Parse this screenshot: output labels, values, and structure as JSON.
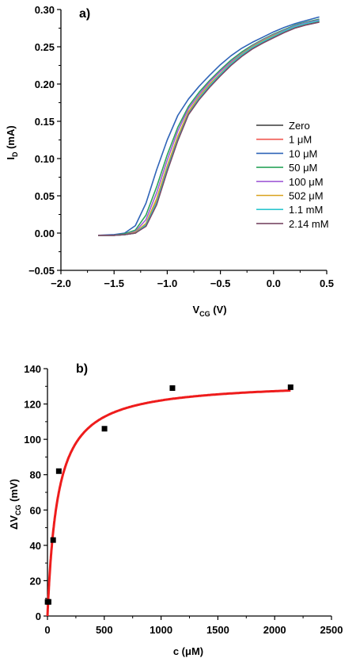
{
  "chart_data": [
    {
      "type": "line",
      "panel_label": "a)",
      "xlabel": "V",
      "xlabel_sub": "CG",
      "xlabel_unit": " (V)",
      "ylabel": "I",
      "ylabel_sub": "D",
      "ylabel_unit": " (mA)",
      "xlim": [
        -2.0,
        0.5
      ],
      "ylim": [
        -0.05,
        0.3
      ],
      "xticks": [
        -2.0,
        -1.5,
        -1.0,
        -0.5,
        0.0,
        0.5
      ],
      "xtick_labels": [
        "−2.0",
        "−1.5",
        "−1.0",
        "−0.5",
        "0.0",
        "0.5"
      ],
      "yticks": [
        -0.05,
        0.0,
        0.05,
        0.1,
        0.15,
        0.2,
        0.25,
        0.3
      ],
      "ytick_labels": [
        "−0.05",
        "0.00",
        "0.05",
        "0.10",
        "0.15",
        "0.20",
        "0.25",
        "0.30"
      ],
      "legend_position": "right",
      "series": [
        {
          "name": "Zero",
          "color": "#3a3a3a",
          "shift": 0.125,
          "x": [
            -1.65,
            -1.5,
            -1.4,
            -1.3,
            -1.2,
            -1.1,
            -1.0,
            -0.9,
            -0.8,
            -0.7,
            -0.6,
            -0.5,
            -0.4,
            -0.3,
            -0.2,
            -0.1,
            0.0,
            0.1,
            0.2,
            0.3,
            0.43
          ],
          "y": [
            -0.003,
            -0.003,
            -0.002,
            0.0,
            0.01,
            0.04,
            0.085,
            0.125,
            0.16,
            0.18,
            0.197,
            0.212,
            0.226,
            0.238,
            0.248,
            0.256,
            0.263,
            0.27,
            0.276,
            0.28,
            0.284
          ]
        },
        {
          "name": "1 μM",
          "color": "#f0564f",
          "shift": 0.118,
          "x": [
            -1.65,
            -1.5,
            -1.4,
            -1.3,
            -1.2,
            -1.1,
            -1.0,
            -0.9,
            -0.8,
            -0.7,
            -0.6,
            -0.5,
            -0.4,
            -0.3,
            -0.2,
            -0.1,
            0.0,
            0.1,
            0.2,
            0.3,
            0.43
          ],
          "y": [
            -0.003,
            -0.003,
            -0.002,
            0.0,
            0.011,
            0.042,
            0.087,
            0.127,
            0.161,
            0.181,
            0.198,
            0.213,
            0.227,
            0.239,
            0.249,
            0.257,
            0.264,
            0.271,
            0.277,
            0.281,
            0.285
          ]
        },
        {
          "name": "10 μM",
          "color": "#2f64b8",
          "shift": 0.0,
          "x": [
            -1.65,
            -1.5,
            -1.4,
            -1.3,
            -1.2,
            -1.1,
            -1.0,
            -0.9,
            -0.8,
            -0.7,
            -0.6,
            -0.5,
            -0.4,
            -0.3,
            -0.2,
            -0.1,
            0.0,
            0.1,
            0.2,
            0.3,
            0.43
          ],
          "y": [
            -0.003,
            -0.002,
            0.0,
            0.01,
            0.04,
            0.085,
            0.125,
            0.158,
            0.18,
            0.197,
            0.212,
            0.226,
            0.238,
            0.248,
            0.256,
            0.263,
            0.27,
            0.276,
            0.281,
            0.285,
            0.29
          ]
        },
        {
          "name": "50 μM",
          "color": "#2ca55b",
          "shift": 0.06,
          "x": [
            -1.65,
            -1.5,
            -1.4,
            -1.3,
            -1.2,
            -1.1,
            -1.0,
            -0.9,
            -0.8,
            -0.7,
            -0.6,
            -0.5,
            -0.4,
            -0.3,
            -0.2,
            -0.1,
            0.0,
            0.1,
            0.2,
            0.3,
            0.43
          ],
          "y": [
            -0.003,
            -0.003,
            -0.001,
            0.004,
            0.024,
            0.062,
            0.105,
            0.142,
            0.17,
            0.189,
            0.205,
            0.219,
            0.232,
            0.243,
            0.252,
            0.26,
            0.267,
            0.273,
            0.279,
            0.283,
            0.287
          ]
        },
        {
          "name": "100 μM",
          "color": "#a15cd6",
          "shift": 0.08,
          "x": [
            -1.65,
            -1.5,
            -1.4,
            -1.3,
            -1.2,
            -1.1,
            -1.0,
            -0.9,
            -0.8,
            -0.7,
            -0.6,
            -0.5,
            -0.4,
            -0.3,
            -0.2,
            -0.1,
            0.0,
            0.1,
            0.2,
            0.3,
            0.43
          ],
          "y": [
            -0.003,
            -0.003,
            -0.002,
            0.002,
            0.018,
            0.054,
            0.098,
            0.137,
            0.167,
            0.186,
            0.203,
            0.217,
            0.23,
            0.241,
            0.251,
            0.259,
            0.266,
            0.272,
            0.278,
            0.282,
            0.286
          ]
        },
        {
          "name": "502 μM",
          "color": "#d9a21e",
          "shift": 0.105,
          "x": [
            -1.65,
            -1.5,
            -1.4,
            -1.3,
            -1.2,
            -1.1,
            -1.0,
            -0.9,
            -0.8,
            -0.7,
            -0.6,
            -0.5,
            -0.4,
            -0.3,
            -0.2,
            -0.1,
            0.0,
            0.1,
            0.2,
            0.3,
            0.43
          ],
          "y": [
            -0.003,
            -0.003,
            -0.002,
            0.001,
            0.013,
            0.046,
            0.09,
            0.13,
            0.163,
            0.183,
            0.2,
            0.214,
            0.228,
            0.24,
            0.25,
            0.258,
            0.265,
            0.271,
            0.277,
            0.281,
            0.285
          ]
        },
        {
          "name": "1.1 mM",
          "color": "#2ec6cf",
          "shift": 0.12,
          "x": [
            -1.65,
            -1.5,
            -1.4,
            -1.3,
            -1.2,
            -1.1,
            -1.0,
            -0.9,
            -0.8,
            -0.7,
            -0.6,
            -0.5,
            -0.4,
            -0.3,
            -0.2,
            -0.1,
            0.0,
            0.1,
            0.2,
            0.3,
            0.43
          ],
          "y": [
            -0.003,
            -0.003,
            -0.002,
            0.0,
            0.011,
            0.041,
            0.086,
            0.126,
            0.16,
            0.181,
            0.198,
            0.213,
            0.227,
            0.239,
            0.249,
            0.257,
            0.264,
            0.271,
            0.277,
            0.281,
            0.285
          ]
        },
        {
          "name": "2.14 mM",
          "color": "#7a4a66",
          "shift": 0.13,
          "x": [
            -1.65,
            -1.5,
            -1.4,
            -1.3,
            -1.2,
            -1.1,
            -1.0,
            -0.9,
            -0.8,
            -0.7,
            -0.6,
            -0.5,
            -0.4,
            -0.3,
            -0.2,
            -0.1,
            0.0,
            0.1,
            0.2,
            0.3,
            0.43
          ],
          "y": [
            -0.003,
            -0.003,
            -0.002,
            0.0,
            0.009,
            0.038,
            0.083,
            0.124,
            0.159,
            0.179,
            0.196,
            0.211,
            0.225,
            0.237,
            0.247,
            0.255,
            0.262,
            0.269,
            0.275,
            0.279,
            0.283
          ]
        }
      ]
    },
    {
      "type": "scatter",
      "panel_label": "b)",
      "xlabel": "c (μM)",
      "ylabel": "ΔV",
      "ylabel_sub": "CG",
      "ylabel_unit": " (mV)",
      "xlim": [
        0,
        2500
      ],
      "ylim": [
        0,
        140
      ],
      "xticks": [
        0,
        500,
        1000,
        1500,
        2000,
        2500
      ],
      "yticks": [
        0,
        20,
        40,
        60,
        80,
        100,
        120,
        140
      ],
      "points": {
        "x": [
          1,
          10,
          50,
          100,
          502,
          1100,
          2140
        ],
        "y": [
          8,
          8,
          43,
          82,
          106,
          129,
          129.5
        ],
        "color": "#000000"
      },
      "fit": {
        "model": "langmuir",
        "color": "#ee1c1c",
        "vmax": 133,
        "kd": 90,
        "x_range": [
          0,
          2140
        ]
      }
    }
  ]
}
